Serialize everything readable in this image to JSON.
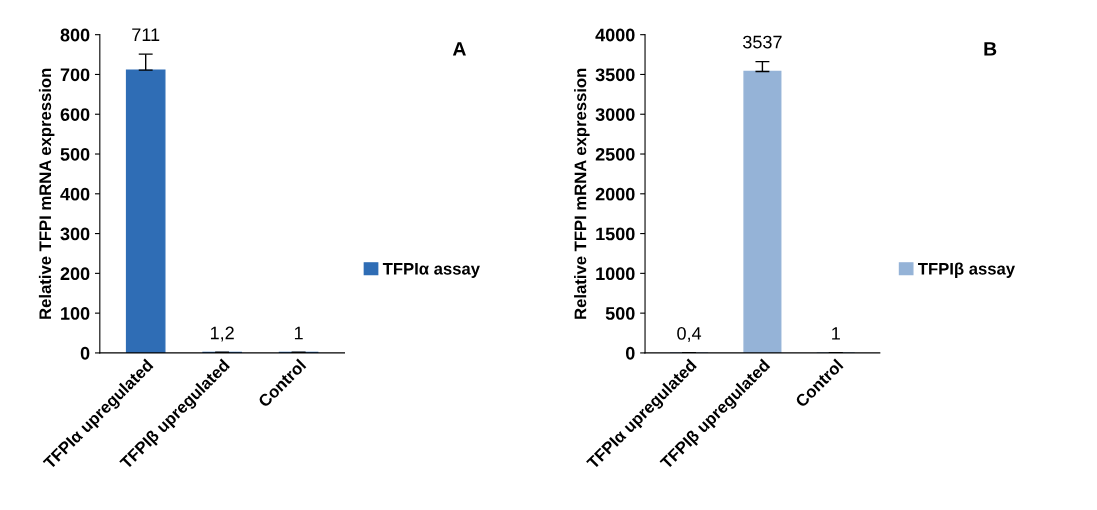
{
  "chart_data": [
    {
      "type": "bar",
      "ylabel": "Relative TFPI mRNA expression",
      "categories": [
        "TFPIα upregulated",
        "TFPIβ upregulated",
        "Control"
      ],
      "series": [
        {
          "name": "TFPIα assay",
          "color": "#2f6db5",
          "values": [
            711,
            1.2,
            1
          ],
          "errors": [
            40,
            null,
            null
          ],
          "value_labels": [
            "711",
            "1,2",
            "1"
          ]
        }
      ],
      "ylim": [
        0,
        800
      ],
      "yticks": [
        0,
        100,
        200,
        300,
        400,
        500,
        600,
        700,
        800
      ],
      "legend": "right",
      "grid": false,
      "annotations": [
        "A"
      ]
    },
    {
      "type": "bar",
      "ylabel": "Relative TFPI mRNA expression",
      "categories": [
        "TFPIα upregulated",
        "TFPIβ upregulated",
        "Control"
      ],
      "series": [
        {
          "name": "TFPIβ assay",
          "color": "#95b3d7",
          "values": [
            0.4,
            3537,
            1
          ],
          "errors": [
            null,
            125,
            null
          ],
          "value_labels": [
            "0,4",
            "3537",
            "1"
          ]
        }
      ],
      "ylim": [
        0,
        4000
      ],
      "yticks": [
        0,
        500,
        1000,
        1500,
        2000,
        2500,
        3000,
        3500,
        4000
      ],
      "legend": "right",
      "grid": false,
      "annotations": [
        "B"
      ]
    }
  ]
}
